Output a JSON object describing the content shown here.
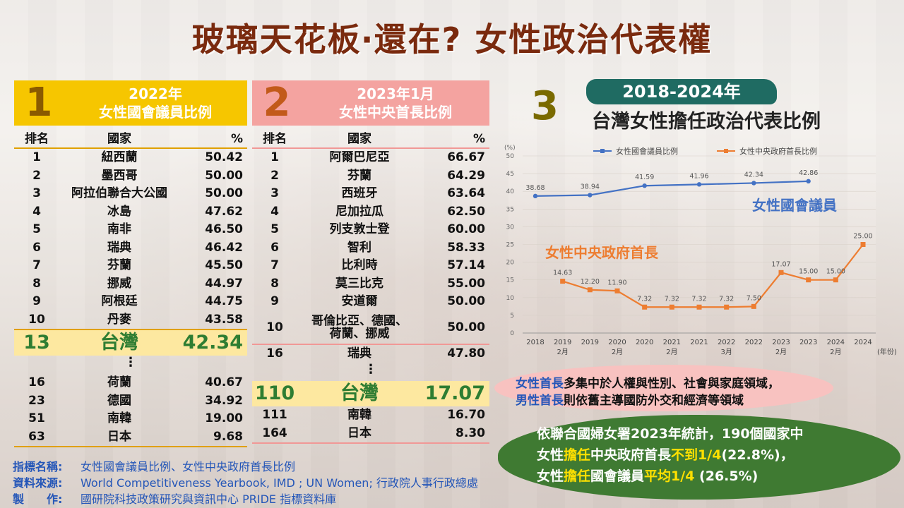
{
  "title": "玻璃天花板‧還在? 女性政治代表權",
  "panel1": {
    "number": "1",
    "heading_line1": "2022年",
    "heading_line2": "女性國會議員比例",
    "headers": {
      "rank": "排名",
      "country": "國家",
      "pct": "%"
    },
    "rows": [
      {
        "rank": "1",
        "country": "紐西蘭",
        "pct": "50.42"
      },
      {
        "rank": "2",
        "country": "墨西哥",
        "pct": "50.00"
      },
      {
        "rank": "3",
        "country": "阿拉伯聯合大公國",
        "pct": "50.00"
      },
      {
        "rank": "4",
        "country": "冰島",
        "pct": "47.62"
      },
      {
        "rank": "5",
        "country": "南非",
        "pct": "46.50"
      },
      {
        "rank": "6",
        "country": "瑞典",
        "pct": "46.42"
      },
      {
        "rank": "7",
        "country": "芬蘭",
        "pct": "45.50"
      },
      {
        "rank": "8",
        "country": "挪威",
        "pct": "44.97"
      },
      {
        "rank": "9",
        "country": "阿根廷",
        "pct": "44.75"
      },
      {
        "rank": "10",
        "country": "丹麥",
        "pct": "43.58"
      }
    ],
    "taiwan": {
      "rank": "13",
      "country": "台灣",
      "pct": "42.34"
    },
    "dots": "⋮",
    "bottom_rows": [
      {
        "rank": "16",
        "country": "荷蘭",
        "pct": "40.67"
      },
      {
        "rank": "23",
        "country": "德國",
        "pct": "34.92"
      },
      {
        "rank": "51",
        "country": "南韓",
        "pct": "19.00"
      },
      {
        "rank": "63",
        "country": "日本",
        "pct": "9.68"
      }
    ]
  },
  "panel2": {
    "number": "2",
    "heading_line1": "2023年1月",
    "heading_line2": "女性中央首長比例",
    "headers": {
      "rank": "排名",
      "country": "國家",
      "pct": "%"
    },
    "rows": [
      {
        "rank": "1",
        "country": "阿爾巴尼亞",
        "pct": "66.67"
      },
      {
        "rank": "2",
        "country": "芬蘭",
        "pct": "64.29"
      },
      {
        "rank": "3",
        "country": "西班牙",
        "pct": "63.64"
      },
      {
        "rank": "4",
        "country": "尼加拉瓜",
        "pct": "62.50"
      },
      {
        "rank": "5",
        "country": "列支敦士登",
        "pct": "60.00"
      },
      {
        "rank": "6",
        "country": "智利",
        "pct": "58.33"
      },
      {
        "rank": "7",
        "country": "比利時",
        "pct": "57.14"
      },
      {
        "rank": "8",
        "country": "莫三比克",
        "pct": "55.00"
      },
      {
        "rank": "9",
        "country": "安道爾",
        "pct": "50.00"
      }
    ],
    "row10": {
      "rank": "10",
      "country_line1": "哥倫比亞、德國、",
      "country_line2": "荷蘭、挪威",
      "pct": "50.00"
    },
    "row16": {
      "rank": "16",
      "country": "瑞典",
      "pct": "47.80"
    },
    "dots": "⋮",
    "taiwan": {
      "rank": "110",
      "country": "台灣",
      "pct": "17.07"
    },
    "bottom_rows": [
      {
        "rank": "111",
        "country": "南韓",
        "pct": "16.70"
      },
      {
        "rank": "164",
        "country": "日本",
        "pct": "8.30"
      }
    ]
  },
  "panel3": {
    "number": "3",
    "title_line1": "2018-2024年",
    "title_line2": "台灣女性擔任政治代表比例"
  },
  "chart_data": {
    "type": "line",
    "title": "台灣女性擔任政治代表比例",
    "ylabel": "(%)",
    "xlabel": "(年份)",
    "ylim": [
      0,
      50
    ],
    "yticks": [
      0,
      5,
      10,
      15,
      20,
      25,
      30,
      35,
      40,
      45,
      50
    ],
    "x": [
      "2018",
      "2019 2月",
      "2019",
      "2020 2月",
      "2020",
      "2021 2月",
      "2021",
      "2022 3月",
      "2022",
      "2023 2月",
      "2023",
      "2024 2月",
      "2024"
    ],
    "x_labels": [
      {
        "year": "2018",
        "month": ""
      },
      {
        "year": "2019",
        "month": "2月"
      },
      {
        "year": "2019",
        "month": ""
      },
      {
        "year": "2020",
        "month": "2月"
      },
      {
        "year": "2020",
        "month": ""
      },
      {
        "year": "2021",
        "month": "2月"
      },
      {
        "year": "2021",
        "month": ""
      },
      {
        "year": "2022",
        "month": "3月"
      },
      {
        "year": "2022",
        "month": ""
      },
      {
        "year": "2023",
        "month": "2月"
      },
      {
        "year": "2023",
        "month": ""
      },
      {
        "year": "2024",
        "month": "2月"
      },
      {
        "year": "2024",
        "month": ""
      }
    ],
    "series": [
      {
        "name": "女性國會議員比例",
        "label": "女性國會議員",
        "color": "#4472c4",
        "points": [
          [
            0,
            38.68
          ],
          [
            2,
            38.94
          ],
          [
            4,
            41.59
          ],
          [
            6,
            41.96
          ],
          [
            8,
            42.34
          ],
          [
            10,
            42.86
          ]
        ]
      },
      {
        "name": "女性中央政府首長比例",
        "label": "女性中央政府首長",
        "color": "#ed7d31",
        "points": [
          [
            1,
            14.63
          ],
          [
            2,
            12.2
          ],
          [
            3,
            11.9
          ],
          [
            4,
            7.32
          ],
          [
            5,
            7.32
          ],
          [
            6,
            7.32
          ],
          [
            7,
            7.32
          ],
          [
            8,
            7.5
          ],
          [
            9,
            17.07
          ],
          [
            10,
            15.0
          ],
          [
            11,
            15.0
          ],
          [
            12,
            25.0
          ]
        ]
      }
    ],
    "legend_placement": "top"
  },
  "note_pink": {
    "part1": "女性首長",
    "part2": "多集中於人權與性別、社會與家庭領域，",
    "part3": "男性首長",
    "part4": "則依舊主導國防外交和經濟等領域"
  },
  "note_green": {
    "line1": "依聯合國婦女署2023年統計，190個國家中",
    "l2a": "女性",
    "l2b": "擔任",
    "l2c": "中央政府首長",
    "l2d": "不到1/4",
    "l2e": "(22.8%)，",
    "l3a": "女性",
    "l3b": "擔任",
    "l3c": "國會議員",
    "l3d": "平均1/4",
    "l3e": "  (26.5%)"
  },
  "footer": {
    "label1": "指標名稱:",
    "value1": "女性國會議員比例、女性中央政府首長比例",
    "label2": "資料來源:",
    "value2": "World Competitiveness Yearbook, IMD ; UN Women; 行政院人事行政總處",
    "label3": "製　　作:",
    "value3": "國研院科技政策研究與資訊中心 PRIDE 指標資料庫"
  }
}
